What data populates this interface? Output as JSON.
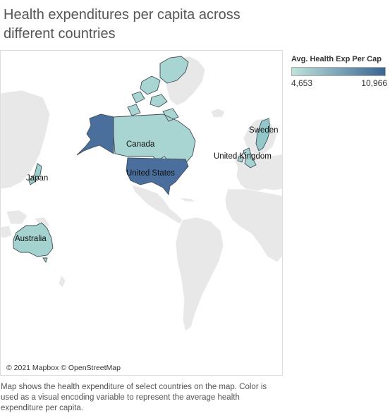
{
  "title": "Health expenditures per capita across different countries",
  "legend": {
    "title": "Avg. Health Exp Per Cap",
    "min_label": "4,653",
    "max_label": "10,966",
    "min_value": 4653,
    "max_value": 10966,
    "color_low": "#bfe2db",
    "color_high": "#3b6591"
  },
  "map": {
    "attribution": "© 2021 Mapbox © OpenStreetMap",
    "countries": [
      {
        "name": "Canada",
        "color": "#a8d4d1"
      },
      {
        "name": "United States",
        "color": "#4a6f9c"
      },
      {
        "name": "Sweden",
        "color": "#93c7c9"
      },
      {
        "name": "United Kingdom",
        "color": "#a6d3d0"
      },
      {
        "name": "Japan",
        "color": "#9fcfcd"
      },
      {
        "name": "Australia",
        "color": "#a3d2cf"
      }
    ]
  },
  "caption": "Map shows the health expenditure of select countries on the map. Color is used as a visual encoding variable to represent the average health expenditure per capita."
}
